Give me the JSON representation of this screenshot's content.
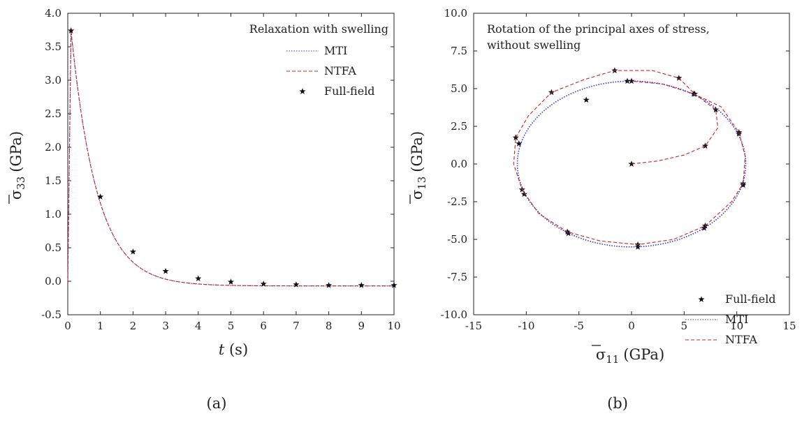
{
  "chart_data": [
    {
      "type": "line",
      "panel_label": "(a)",
      "legend_title": "Relaxation with swelling",
      "xlabel_italic": "t",
      "xlabel_rest": "(s)",
      "ylabel_symbol": "σ",
      "ylabel_sub": "33",
      "ylabel_rest": "(GPa)",
      "xlim": [
        0,
        10
      ],
      "ylim": [
        -0.5,
        4.0
      ],
      "xticks": [
        "0",
        "1",
        "2",
        "3",
        "4",
        "5",
        "6",
        "7",
        "8",
        "9",
        "10"
      ],
      "yticks": [
        "-0.5",
        "0.0",
        "0.5",
        "1.0",
        "1.5",
        "2.0",
        "2.5",
        "3.0",
        "3.5",
        "4.0"
      ],
      "legend_position": "top-right",
      "series": [
        {
          "name": "MTI",
          "style": "dotted",
          "color": "#3333cc",
          "peak": [
            0.1,
            3.74
          ],
          "tau": 0.8,
          "asymptote": -0.07
        },
        {
          "name": "NTFA",
          "style": "dashed",
          "color": "#cc2222",
          "peak": [
            0.1,
            3.74
          ],
          "tau": 0.8,
          "asymptote": -0.07
        },
        {
          "name": "Full-field",
          "style": "markers",
          "points": [
            [
              0.1,
              3.74
            ],
            [
              1,
              1.26
            ],
            [
              2,
              0.44
            ],
            [
              3,
              0.15
            ],
            [
              4,
              0.04
            ],
            [
              5,
              -0.01
            ],
            [
              6,
              -0.04
            ],
            [
              7,
              -0.05
            ],
            [
              8,
              -0.06
            ],
            [
              9,
              -0.06
            ],
            [
              10,
              -0.06
            ]
          ]
        }
      ]
    },
    {
      "type": "line",
      "panel_label": "(b)",
      "legend_title": [
        "Rotation of the principal axes of stress,",
        "without swelling"
      ],
      "xlabel_symbol": "σ",
      "xlabel_sub": "11",
      "xlabel_rest": "(GPa)",
      "ylabel_symbol": "σ",
      "ylabel_sub": "13",
      "ylabel_rest": "(GPa)",
      "xlim": [
        -15,
        15
      ],
      "ylim": [
        -10,
        10
      ],
      "xticks": [
        "-15",
        "-10",
        "-5",
        "0",
        "5",
        "10",
        "15"
      ],
      "yticks": [
        "-10.0",
        "-7.5",
        "-5.0",
        "-2.5",
        "0.0",
        "2.5",
        "5.0",
        "7.5",
        "10.0"
      ],
      "legend_position": "bottom-right",
      "series": [
        {
          "name": "Full-field",
          "style": "markers",
          "points": [
            [
              0,
              0
            ],
            [
              7.0,
              1.2
            ],
            [
              8.0,
              3.6
            ],
            [
              6.0,
              4.65
            ],
            [
              4.5,
              5.7
            ],
            [
              -0.4,
              5.5
            ],
            [
              -1.6,
              6.2
            ],
            [
              -4.3,
              4.25
            ],
            [
              -7.6,
              4.75
            ],
            [
              -10.7,
              1.35
            ],
            [
              -11.0,
              1.75
            ],
            [
              -10.4,
              -1.7
            ],
            [
              -10.2,
              -2.0
            ],
            [
              -6.1,
              -4.5
            ],
            [
              -6.0,
              -4.6
            ],
            [
              0.6,
              -5.35
            ],
            [
              0.6,
              -5.5
            ],
            [
              7.0,
              -4.1
            ],
            [
              6.9,
              -4.25
            ],
            [
              10.6,
              -1.3
            ],
            [
              10.6,
              -1.4
            ],
            [
              10.2,
              2.1
            ],
            [
              10.2,
              2.0
            ],
            [
              5.9,
              4.65
            ],
            [
              0,
              5.5
            ]
          ]
        },
        {
          "name": "MTI",
          "style": "dotted",
          "color": "#3333cc",
          "ellipse": {
            "rx": 10.85,
            "ry": 5.5
          }
        },
        {
          "name": "NTFA",
          "style": "dashed",
          "color": "#cc2222",
          "points": [
            [
              0,
              0
            ],
            [
              2.5,
              0.2
            ],
            [
              5.0,
              0.6
            ],
            [
              7.0,
              1.2
            ],
            [
              8.2,
              2.4
            ],
            [
              8.0,
              3.6
            ],
            [
              6.0,
              4.65
            ],
            [
              4.5,
              5.7
            ],
            [
              2.0,
              6.2
            ],
            [
              -1.6,
              6.2
            ],
            [
              -4.5,
              5.6
            ],
            [
              -7.6,
              4.75
            ],
            [
              -9.8,
              3.2
            ],
            [
              -11.0,
              1.75
            ],
            [
              -11.2,
              0.0
            ],
            [
              -10.4,
              -1.7
            ],
            [
              -8.8,
              -3.3
            ],
            [
              -6.1,
              -4.5
            ],
            [
              -3.0,
              -5.1
            ],
            [
              0.6,
              -5.35
            ],
            [
              4.0,
              -5.0
            ],
            [
              7.0,
              -4.1
            ],
            [
              9.5,
              -2.5
            ],
            [
              10.6,
              -1.3
            ],
            [
              10.8,
              0.5
            ],
            [
              10.2,
              2.1
            ],
            [
              8.5,
              3.8
            ],
            [
              5.9,
              4.65
            ],
            [
              3.0,
              5.3
            ],
            [
              0,
              5.5
            ]
          ]
        }
      ]
    }
  ]
}
